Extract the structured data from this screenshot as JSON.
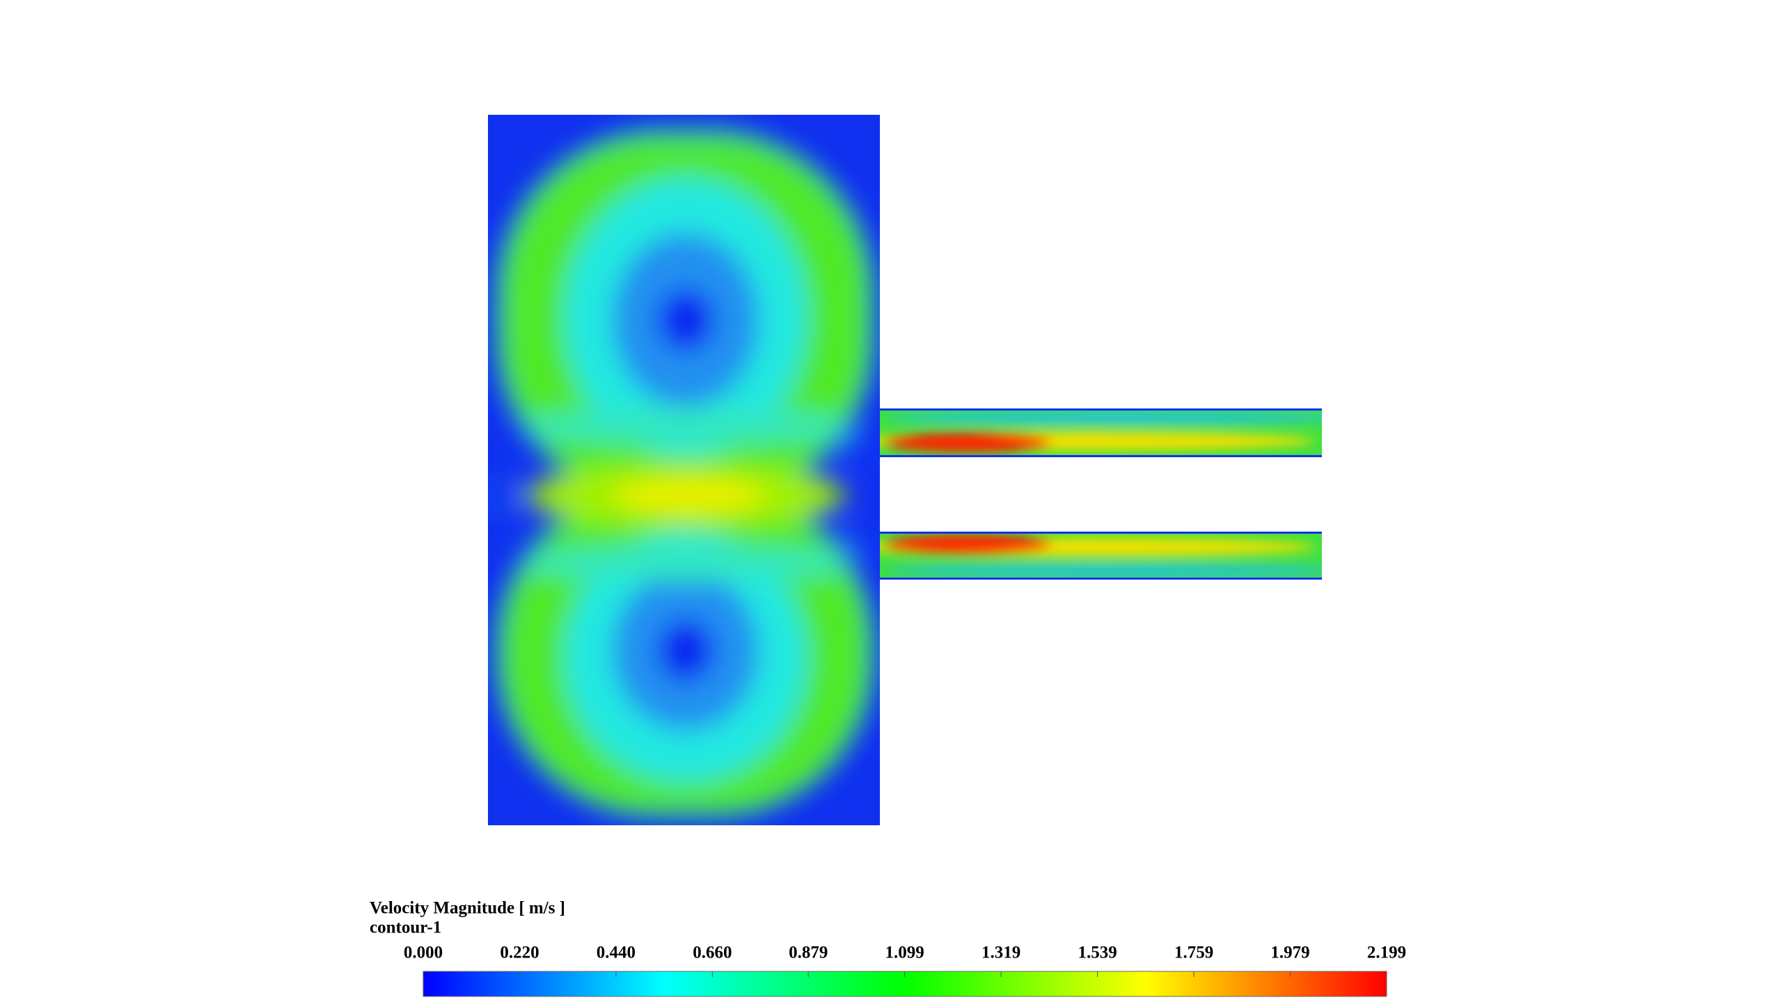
{
  "chart_data": {
    "type": "contour",
    "title": "Velocity Magnitude [ m/s ]",
    "subtitle": "contour-1",
    "clim": [
      0,
      2.199
    ],
    "cticks": [
      {
        "value": 0,
        "label": "0.000"
      },
      {
        "value": 0.22,
        "label": "0.220"
      },
      {
        "value": 0.44,
        "label": "0.440"
      },
      {
        "value": 0.66,
        "label": "0.660"
      },
      {
        "value": 0.879,
        "label": "0.879"
      },
      {
        "value": 1.099,
        "label": "1.099"
      },
      {
        "value": 1.319,
        "label": "1.319"
      },
      {
        "value": 1.539,
        "label": "1.539"
      },
      {
        "value": 1.759,
        "label": "1.759"
      },
      {
        "value": 1.979,
        "label": "1.979"
      },
      {
        "value": 2.199,
        "label": "2.199"
      }
    ],
    "colormap": [
      "#0000ff",
      "#00ffff",
      "#00ff00",
      "#ffff00",
      "#ff0000"
    ]
  }
}
